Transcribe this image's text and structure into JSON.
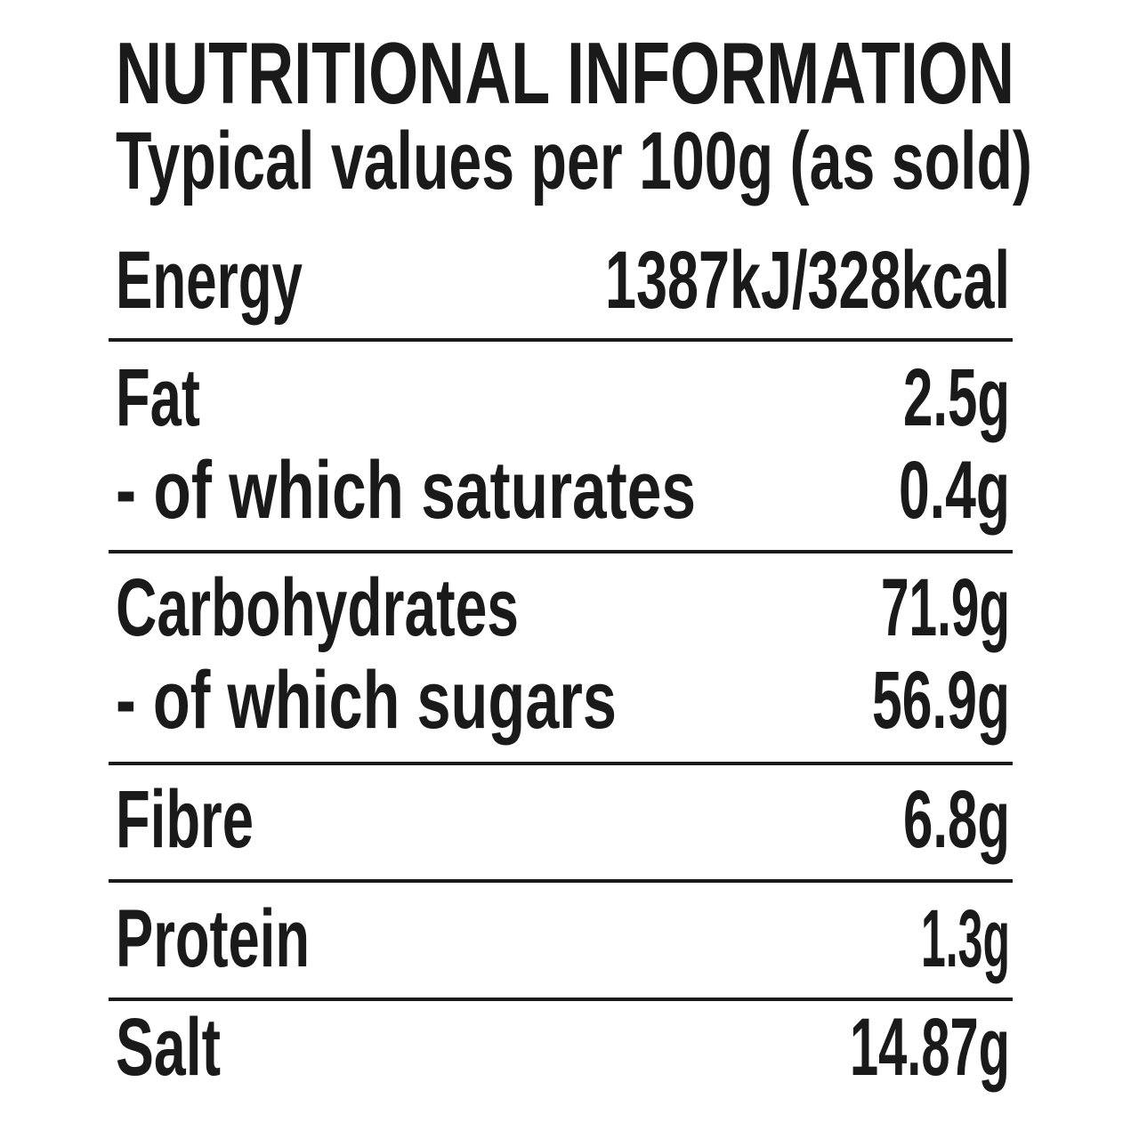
{
  "header": {
    "title": "NUTRITIONAL INFORMATION",
    "subtitle": "Typical values per 100g (as sold)"
  },
  "table": {
    "rows": [
      [
        "Energy",
        "1387kJ/328kcal"
      ],
      [
        "Fat",
        "2.5g"
      ],
      [
        "- of which saturates",
        "0.4g"
      ],
      [
        "Carbohydrates",
        "71.9g"
      ],
      [
        "- of which sugars",
        "56.9g"
      ],
      [
        "Fibre",
        "6.8g"
      ],
      [
        "Protein",
        "1.3g"
      ],
      [
        "Salt",
        "14.87g"
      ]
    ]
  }
}
